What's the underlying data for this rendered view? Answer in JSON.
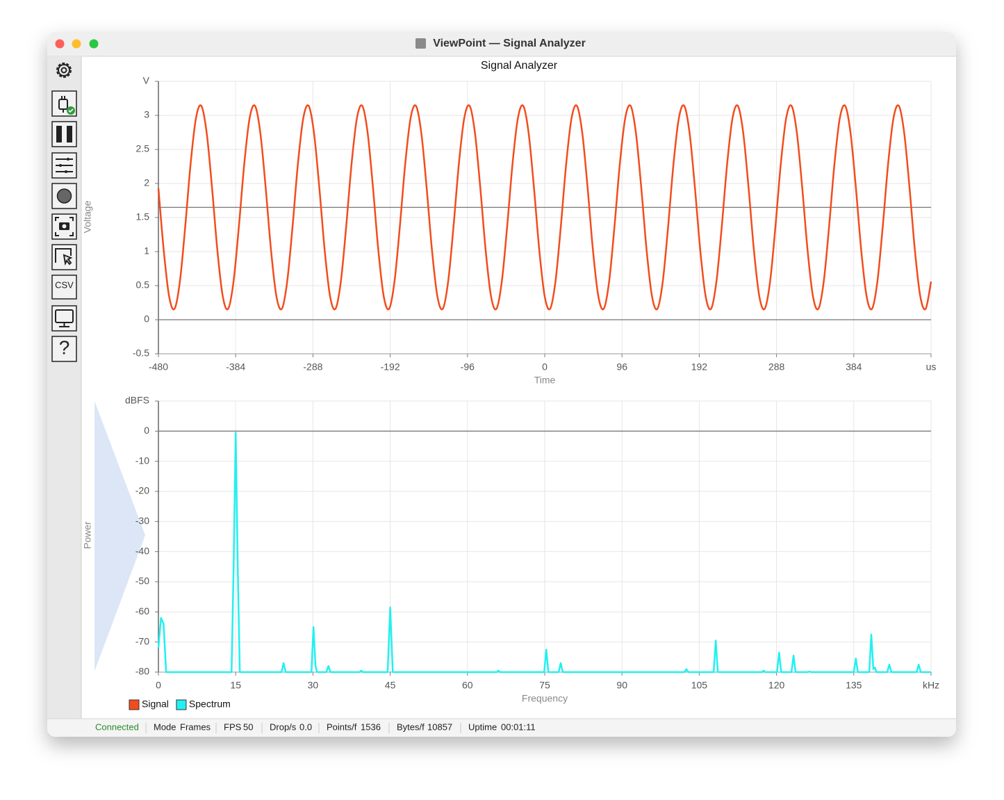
{
  "window": {
    "title": "ViewPoint — Signal Analyzer"
  },
  "toolbar": {
    "csv": "CSV",
    "help": "?"
  },
  "chart_data": [
    {
      "type": "line",
      "title": "Signal Analyzer",
      "x_label": "Time",
      "y_label": "Voltage",
      "smooth": true,
      "grid": true,
      "xlim": [
        -480,
        480
      ],
      "xticks": [
        -480,
        -384,
        -288,
        -192,
        -96,
        0,
        96,
        192,
        288,
        384,
        {
          "value": 480,
          "label": "us"
        }
      ],
      "ylim": [
        -0.5,
        3.5
      ],
      "yticks": [
        -0.5,
        0,
        0.5,
        1,
        1.5,
        2,
        2.5,
        3,
        {
          "value": 3.5,
          "label": "V"
        }
      ],
      "reference_lines": [
        1.65
      ],
      "x": [
        -480,
        -473.33,
        -466.67,
        -460,
        -453.33,
        -446.67,
        -440,
        -433.33,
        -426.67,
        -420,
        -413.33,
        -406.67,
        -400,
        -393.33,
        -386.67,
        -380,
        -373.33,
        -366.67,
        -360,
        -353.33,
        -346.67,
        -340,
        -333.33,
        -326.67,
        -320,
        -313.33,
        -306.67,
        -300,
        -293.33,
        -286.67,
        -280,
        -273.33,
        -266.67,
        -260,
        -253.33,
        -246.67,
        -240,
        -233.33,
        -226.67,
        -220,
        -213.33,
        -206.67,
        -200,
        -193.33,
        -186.67,
        -180,
        -173.33,
        -166.67,
        -160,
        -153.33,
        -146.67,
        -140,
        -133.33,
        -126.67,
        -120,
        -113.33,
        -106.67,
        -100,
        -93.33,
        -86.67,
        -80,
        -73.33,
        -66.67,
        -60,
        -53.33,
        -46.67,
        -40,
        -33.33,
        -26.67,
        -20,
        -13.33,
        -6.67,
        0,
        6.67,
        13.33,
        20,
        26.67,
        33.33,
        40,
        46.67,
        53.33,
        60,
        66.67,
        73.33,
        80,
        86.67,
        93.33,
        100,
        106.67,
        113.33,
        120,
        126.67,
        133.33,
        140,
        146.67,
        153.33,
        160,
        166.67,
        173.33,
        180,
        186.67,
        193.33,
        200,
        206.67,
        213.33,
        220,
        226.67,
        233.33,
        240,
        246.67,
        253.33,
        260,
        266.67,
        273.33,
        280,
        286.67,
        293.33,
        300,
        306.67,
        313.33,
        320,
        326.67,
        333.33,
        340,
        346.67,
        353.33,
        360,
        366.67,
        373.33,
        380,
        386.67,
        393.33,
        400,
        406.67,
        413.33,
        420,
        426.67,
        433.33,
        440,
        446.67,
        453.33,
        460,
        466.67,
        473.33,
        480
      ],
      "series": [
        {
          "name": "Signal",
          "color": "#f24c1d",
          "values": [
            1.93,
            1.01,
            0.34,
            0.16,
            0.56,
            1.37,
            2.29,
            2.96,
            3.14,
            2.74,
            1.93,
            1.01,
            0.34,
            0.16,
            0.56,
            1.37,
            2.29,
            2.96,
            3.14,
            2.74,
            1.93,
            1.01,
            0.34,
            0.16,
            0.56,
            1.37,
            2.29,
            2.96,
            3.14,
            2.74,
            1.93,
            1.01,
            0.34,
            0.16,
            0.56,
            1.37,
            2.29,
            2.96,
            3.14,
            2.74,
            1.93,
            1.01,
            0.34,
            0.16,
            0.56,
            1.37,
            2.29,
            2.96,
            3.14,
            2.74,
            1.93,
            1.01,
            0.34,
            0.16,
            0.56,
            1.37,
            2.29,
            2.96,
            3.14,
            2.74,
            1.93,
            1.01,
            0.34,
            0.16,
            0.56,
            1.37,
            2.29,
            2.96,
            3.14,
            2.74,
            1.93,
            1.01,
            0.34,
            0.16,
            0.56,
            1.37,
            2.29,
            2.96,
            3.14,
            2.74,
            1.93,
            1.01,
            0.34,
            0.16,
            0.56,
            1.37,
            2.29,
            2.96,
            3.14,
            2.74,
            1.93,
            1.01,
            0.34,
            0.16,
            0.56,
            1.37,
            2.29,
            2.96,
            3.14,
            2.74,
            1.93,
            1.01,
            0.34,
            0.16,
            0.56,
            1.37,
            2.29,
            2.96,
            3.14,
            2.74,
            1.93,
            1.01,
            0.34,
            0.16,
            0.56,
            1.37,
            2.29,
            2.96,
            3.14,
            2.74,
            1.93,
            1.01,
            0.34,
            0.16,
            0.56,
            1.37,
            2.29,
            2.96,
            3.14,
            2.74,
            1.93,
            1.01,
            0.34,
            0.16,
            0.56,
            1.37,
            2.29,
            2.96,
            3.14,
            2.74,
            1.93,
            1.01,
            0.34,
            0.16,
            0.56
          ]
        }
      ]
    },
    {
      "type": "line",
      "x_label": "Frequency",
      "y_label": "Power",
      "smooth": false,
      "grid": true,
      "xlim": [
        0,
        150
      ],
      "xticks": [
        0,
        15,
        30,
        45,
        60,
        75,
        90,
        105,
        120,
        135,
        {
          "value": 150,
          "label": "kHz"
        }
      ],
      "ylim": [
        -80,
        10
      ],
      "yticks": [
        -80,
        -70,
        -60,
        -50,
        -40,
        -30,
        -20,
        -10,
        0,
        {
          "value": 10,
          "label": "dBFS"
        }
      ],
      "x": [
        0,
        0.5,
        1,
        1.5,
        14.2,
        14.6,
        15,
        15.4,
        15.8,
        23.9,
        24.3,
        24.7,
        29.7,
        30.1,
        30.5,
        30.8,
        32.6,
        33,
        33.4,
        39.1,
        39.4,
        39.7,
        44.5,
        45,
        45.5,
        65.7,
        66,
        66.3,
        74.9,
        75.3,
        75.7,
        77.7,
        78.1,
        78.5,
        102.1,
        102.5,
        102.9,
        107.8,
        108.2,
        108.6,
        117.2,
        117.5,
        117.8,
        120.1,
        120.5,
        120.9,
        122.9,
        123.3,
        123.7,
        126.1,
        126.4,
        126.7,
        135,
        135.4,
        135.8,
        138,
        138.4,
        138.8,
        139.1,
        139.4,
        141.5,
        141.9,
        142.3,
        147.2,
        147.6,
        148,
        150
      ],
      "series": [
        {
          "name": "Spectrum",
          "color": "#22f0f0",
          "values": [
            -72,
            -62,
            -64,
            -80,
            -80,
            -45,
            -0.5,
            -45,
            -80,
            -80,
            -77,
            -80,
            -80,
            -65,
            -78,
            -80,
            -80,
            -78,
            -80,
            -80,
            -79.5,
            -80,
            -80,
            -58.5,
            -80,
            -80,
            -79.5,
            -80,
            -80,
            -72.5,
            -80,
            -80,
            -77,
            -80,
            -80,
            -79,
            -80,
            -80,
            -69.5,
            -80,
            -80,
            -79.5,
            -80,
            -80,
            -73.5,
            -80,
            -80,
            -74.5,
            -80,
            -80,
            -79.8,
            -80,
            -80,
            -75.5,
            -80,
            -80,
            -67.5,
            -79,
            -78.5,
            -80,
            -80,
            -77.5,
            -80,
            -80,
            -77.5,
            -80,
            -80
          ]
        }
      ]
    }
  ],
  "status": {
    "connection": "Connected",
    "fields": [
      {
        "label": "Mode",
        "value": "Frames"
      },
      {
        "label": "FPS",
        "value": "50"
      },
      {
        "label": "Drop/s",
        "value": "0.0"
      },
      {
        "label": "Points/f",
        "value": "1536"
      },
      {
        "label": "Bytes/f",
        "value": "10857"
      },
      {
        "label": "Uptime",
        "value": "00:01:11"
      }
    ]
  }
}
